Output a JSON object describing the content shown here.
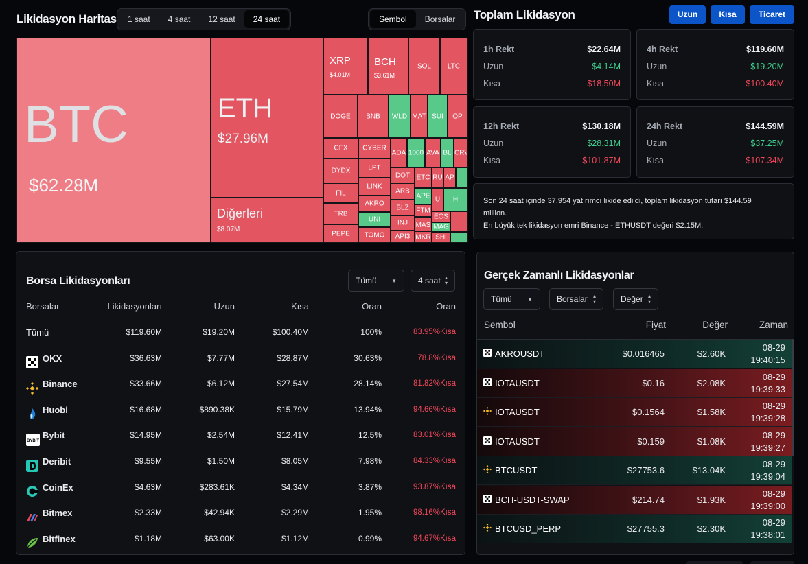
{
  "heatmap": {
    "title": "Likidasyon Haritası",
    "time_tabs": [
      "1 saat",
      "4 saat",
      "12 saat",
      "24 saat"
    ],
    "active_time": "24 saat",
    "view_tabs": [
      "Sembol",
      "Borsalar"
    ],
    "active_view": "Sembol",
    "tiles": {
      "btc": {
        "symbol": "BTC",
        "value": "$62.28M"
      },
      "eth": {
        "symbol": "ETH",
        "value": "$27.96M"
      },
      "others": {
        "symbol": "Diğerleri",
        "value": "$8.07M"
      },
      "xrp": {
        "symbol": "XRP",
        "value": "$4.01M"
      },
      "bch": {
        "symbol": "BCH",
        "value": "$3.61M"
      },
      "small": [
        "SOL",
        "LTC",
        "DOGE",
        "BNB",
        "WLD",
        "MAT",
        "SUI",
        "OP",
        "CFX",
        "CYBER",
        "ADA",
        "1000",
        "AVA",
        "BL",
        "CRV",
        "DYDX",
        "LPT",
        "DOT",
        "ETC",
        "RU",
        "AP",
        "FIL",
        "LINK",
        "ARB",
        "APE",
        "U",
        "H",
        "TRB",
        "AKRO",
        "BLZ",
        "FTM",
        "UNI",
        "INJ",
        "EOS",
        "PEPE",
        "TOMO",
        "API3",
        "MAS",
        "MAG",
        "MKR",
        "SHI"
      ]
    }
  },
  "summary": {
    "title": "Toplam Likidasyon",
    "buttons": [
      "Uzun",
      "Kısa",
      "Ticaret"
    ],
    "cards": [
      {
        "label": "1h Rekt",
        "total": "$22.64M",
        "long_label": "Uzun",
        "long": "$4.14M",
        "short_label": "Kısa",
        "short": "$18.50M"
      },
      {
        "label": "4h Rekt",
        "total": "$119.60M",
        "long_label": "Uzun",
        "long": "$19.20M",
        "short_label": "Kısa",
        "short": "$100.40M"
      },
      {
        "label": "12h Rekt",
        "total": "$130.18M",
        "long_label": "Uzun",
        "long": "$28.31M",
        "short_label": "Kısa",
        "short": "$101.87M"
      },
      {
        "label": "24h Rekt",
        "total": "$144.59M",
        "long_label": "Uzun",
        "long": "$37.25M",
        "short_label": "Kısa",
        "short": "$107.34M"
      }
    ],
    "note_line1": "Son 24 saat içinde 37.954 yatırımcı likide edildi, toplam likidasyon tutarı $144.59 million.",
    "note_line2": "En büyük tek likidasyon emri Binance - ETHUSDT değeri $2.15M."
  },
  "exchange": {
    "title": "Borsa Likidasyonları",
    "filter": "Tümü",
    "period": "4 saat",
    "headers": [
      "Borsalar",
      "Likidasyonları",
      "Uzun",
      "Kısa",
      "Oran",
      "Oran"
    ],
    "rows": [
      {
        "name": "Tümü",
        "liq": "$119.60M",
        "long": "$19.20M",
        "short": "$100.40M",
        "rate": "100%",
        "ratio": "83.95%Kısa",
        "logo": "none"
      },
      {
        "name": "OKX",
        "liq": "$36.63M",
        "long": "$7.77M",
        "short": "$28.87M",
        "rate": "30.63%",
        "ratio": "78.8%Kısa",
        "logo": "okx-logo-icon"
      },
      {
        "name": "Binance",
        "liq": "$33.66M",
        "long": "$6.12M",
        "short": "$27.54M",
        "rate": "28.14%",
        "ratio": "81.82%Kısa",
        "logo": "binance-logo-icon"
      },
      {
        "name": "Huobi",
        "liq": "$16.68M",
        "long": "$890.38K",
        "short": "$15.79M",
        "rate": "13.94%",
        "ratio": "94.66%Kısa",
        "logo": "huobi-logo-icon"
      },
      {
        "name": "Bybit",
        "liq": "$14.95M",
        "long": "$2.54M",
        "short": "$12.41M",
        "rate": "12.5%",
        "ratio": "83.01%Kısa",
        "logo": "bybit-logo-icon"
      },
      {
        "name": "Deribit",
        "liq": "$9.55M",
        "long": "$1.50M",
        "short": "$8.05M",
        "rate": "7.98%",
        "ratio": "84.33%Kısa",
        "logo": "deribit-logo-icon"
      },
      {
        "name": "CoinEx",
        "liq": "$4.63M",
        "long": "$283.61K",
        "short": "$4.34M",
        "rate": "3.87%",
        "ratio": "93.87%Kısa",
        "logo": "coinex-logo-icon"
      },
      {
        "name": "Bitmex",
        "liq": "$2.33M",
        "long": "$42.94K",
        "short": "$2.29M",
        "rate": "1.95%",
        "ratio": "98.16%Kısa",
        "logo": "bitmex-logo-icon"
      },
      {
        "name": "Bitfinex",
        "liq": "$1.18M",
        "long": "$63.00K",
        "short": "$1.12M",
        "rate": "0.99%",
        "ratio": "94.67%Kısa",
        "logo": "bitfinex-logo-icon"
      }
    ],
    "bybit_logo_text": "BYBIT"
  },
  "realtime": {
    "title": "Gerçek Zamanlı Likidasyonlar",
    "filters": [
      "Tümü",
      "Borsalar",
      "Değer"
    ],
    "headers": [
      "Sembol",
      "Fiyat",
      "Değer",
      "Zaman"
    ],
    "rows": [
      {
        "symbol": "AKROUSDT",
        "price": "$0.016465",
        "value": "$2.60K",
        "date": "08-29",
        "time": "19:40:15",
        "side": "long",
        "logo": "okx-logo-icon"
      },
      {
        "symbol": "IOTAUSDT",
        "price": "$0.16",
        "value": "$2.08K",
        "date": "08-29",
        "time": "19:39:33",
        "side": "short",
        "logo": "okx-logo-icon"
      },
      {
        "symbol": "IOTAUSDT",
        "price": "$0.1564",
        "value": "$1.58K",
        "date": "08-29",
        "time": "19:39:28",
        "side": "short",
        "logo": "binance-logo-icon"
      },
      {
        "symbol": "IOTAUSDT",
        "price": "$0.159",
        "value": "$1.08K",
        "date": "08-29",
        "time": "19:39:27",
        "side": "short",
        "logo": "okx-logo-icon"
      },
      {
        "symbol": "BTCUSDT",
        "price": "$27753.6",
        "value": "$13.04K",
        "date": "08-29",
        "time": "19:39:04",
        "side": "long",
        "logo": "binance-logo-icon"
      },
      {
        "symbol": "BCH-USDT-SWAP",
        "price": "$214.74",
        "value": "$1.93K",
        "date": "08-29",
        "time": "19:39:00",
        "side": "short",
        "logo": "okx-logo-icon"
      },
      {
        "symbol": "BTCUSD_PERP",
        "price": "$27755.3",
        "value": "$2.30K",
        "date": "08-29",
        "time": "19:38:01",
        "side": "long",
        "logo": "binance-logo-icon"
      }
    ]
  },
  "colors": {
    "long": "#3fcf8e",
    "short": "#f0475a",
    "accent": "#0b55c8",
    "tile_red": "#e25561",
    "tile_green": "#59c98a",
    "btc_tile": "#ee7d86"
  }
}
